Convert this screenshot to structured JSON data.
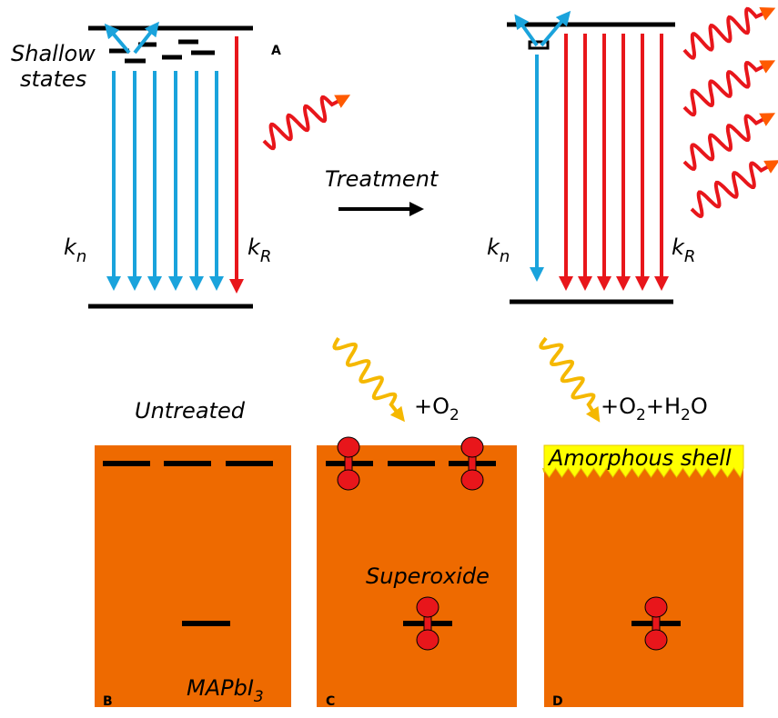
{
  "panel_a": {
    "label": "A",
    "shallow_states": [
      "Shallow",
      "states"
    ],
    "treatment": "Treatment",
    "left": {
      "kn": {
        "symbol": "k",
        "subscript": "n"
      },
      "kr": {
        "symbol": "k",
        "subscript": "R"
      }
    },
    "right": {
      "kn": {
        "symbol": "k",
        "subscript": "n"
      },
      "kr": {
        "symbol": "k",
        "subscript": "R"
      }
    }
  },
  "panel_b": {
    "label": "B",
    "title": "Untreated",
    "material": {
      "text": "MAPbI",
      "subscript": "3"
    }
  },
  "panel_c": {
    "label": "C",
    "condition": [
      {
        "text": "+O",
        "sub": "2"
      }
    ],
    "annotation": "Superoxide"
  },
  "panel_d": {
    "label": "D",
    "condition": [
      {
        "text": "+O",
        "sub": "2"
      },
      {
        "text": "+H",
        "sub": "2"
      },
      {
        "text": "O"
      }
    ],
    "annotation": "Amorphous shell"
  }
}
